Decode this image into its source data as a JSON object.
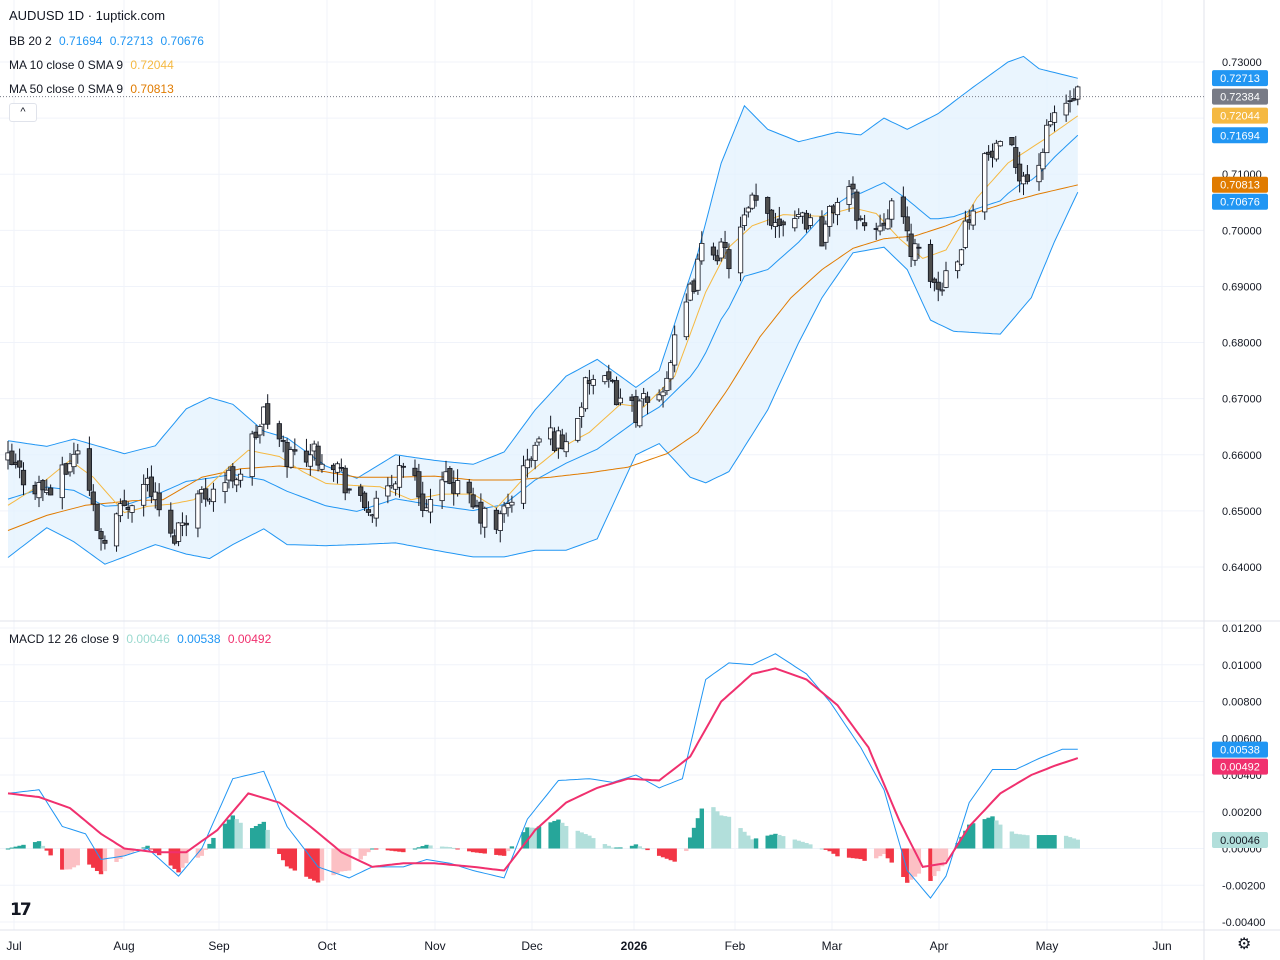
{
  "header": {
    "symbol": "AUDUSD 1D · 1uptick.com"
  },
  "legends": {
    "bb": {
      "label": "BB 20 2",
      "values": [
        "0.71694",
        "0.72713",
        "0.70676"
      ]
    },
    "ma10": {
      "label": "MA 10 close 0 SMA 9",
      "value": "0.72044"
    },
    "ma50": {
      "label": "MA 50 close 0 SMA 9",
      "value": "0.70813"
    },
    "macd": {
      "label": "MACD 12 26 close 9",
      "values": [
        "0.00046",
        "0.00538",
        "0.00492"
      ]
    }
  },
  "collapse_glyph": "^",
  "logo_text": "17",
  "colors": {
    "up": "#ffffff",
    "down": "#4d4d4d",
    "candle_outline": "#131722",
    "bb_line": "#2196f3",
    "bb_fill": "#e3f2fd",
    "ma10": "#f5b942",
    "ma50": "#e07b00",
    "macd": "#2196f3",
    "signal": "#f0306e",
    "hist_pos_strong": "#26a69a",
    "hist_pos_weak": "#b2dfdb",
    "hist_neg_strong": "#f23645",
    "hist_neg_weak": "#fcc0c4",
    "price_tag": "#787b86"
  },
  "chart_data": [
    {
      "type": "candlestick",
      "title": "AUDUSD 1D",
      "x_ticks": [
        "Jul",
        "Aug",
        "Sep",
        "Oct",
        "Nov",
        "Dec",
        "2026",
        "Feb",
        "Mar",
        "Apr",
        "May",
        "Jun"
      ],
      "y_ticks": [
        "0.73000",
        "0.72000",
        "0.71000",
        "0.70000",
        "0.69000",
        "0.68000",
        "0.67000",
        "0.66000",
        "0.65000",
        "0.64000"
      ],
      "ylim": [
        0.6354,
        0.7325
      ],
      "last_price": 0.72384,
      "price_tags": [
        {
          "text": "0.72713",
          "value": 0.72713,
          "color": "#2196f3"
        },
        {
          "text": "0.72384",
          "value": 0.72384,
          "color": "#787b86"
        },
        {
          "text": "0.72044",
          "value": 0.72044,
          "color": "#f5b942"
        },
        {
          "text": "0.71694",
          "value": 0.71694,
          "color": "#2196f3"
        },
        {
          "text": "0.70813",
          "value": 0.70813,
          "color": "#e07b00"
        },
        {
          "text": "0.70676",
          "value": 0.70676,
          "color": "#2196f3"
        }
      ],
      "close_anchors": [
        [
          0,
          0.6586
        ],
        [
          6,
          0.6548
        ],
        [
          12,
          0.6533
        ],
        [
          18,
          0.6615
        ],
        [
          24,
          0.6452
        ],
        [
          30,
          0.6511
        ],
        [
          36,
          0.6555
        ],
        [
          42,
          0.6448
        ],
        [
          48,
          0.6521
        ],
        [
          54,
          0.6545
        ],
        [
          60,
          0.6573
        ],
        [
          66,
          0.6672
        ],
        [
          72,
          0.6598
        ],
        [
          78,
          0.6608
        ],
        [
          84,
          0.6593
        ],
        [
          90,
          0.651
        ],
        [
          96,
          0.65
        ],
        [
          102,
          0.6593
        ],
        [
          108,
          0.6504
        ],
        [
          114,
          0.6557
        ],
        [
          120,
          0.6503
        ],
        [
          126,
          0.647
        ],
        [
          132,
          0.6555
        ],
        [
          138,
          0.664
        ],
        [
          144,
          0.662
        ],
        [
          150,
          0.6734
        ],
        [
          156,
          0.6715
        ],
        [
          162,
          0.6678
        ],
        [
          168,
          0.6705
        ],
        [
          174,
          0.6836
        ],
        [
          180,
          0.6984
        ],
        [
          186,
          0.6948
        ],
        [
          192,
          0.7045
        ],
        [
          198,
          0.702
        ],
        [
          204,
          0.7035
        ],
        [
          210,
          0.6992
        ],
        [
          216,
          0.709
        ],
        [
          222,
          0.6985
        ],
        [
          228,
          0.705
        ],
        [
          234,
          0.696
        ],
        [
          240,
          0.6895
        ],
        [
          246,
          0.698
        ],
        [
          252,
          0.713
        ],
        [
          258,
          0.714
        ],
        [
          264,
          0.708
        ],
        [
          270,
          0.721
        ],
        [
          276,
          0.7238
        ]
      ],
      "bollinger": {
        "upper_anchors": [
          [
            0,
            0.6625
          ],
          [
            10,
            0.6615
          ],
          [
            17,
            0.6628
          ],
          [
            25,
            0.6612
          ],
          [
            30,
            0.6602
          ],
          [
            38,
            0.6616
          ],
          [
            46,
            0.6682
          ],
          [
            52,
            0.6702
          ],
          [
            58,
            0.669
          ],
          [
            66,
            0.6642
          ],
          [
            72,
            0.663
          ],
          [
            82,
            0.658
          ],
          [
            90,
            0.6558
          ],
          [
            100,
            0.66
          ],
          [
            110,
            0.659
          ],
          [
            120,
            0.6583
          ],
          [
            128,
            0.6605
          ],
          [
            136,
            0.668
          ],
          [
            144,
            0.674
          ],
          [
            152,
            0.677
          ],
          [
            162,
            0.672
          ],
          [
            168,
            0.675
          ],
          [
            178,
            0.696
          ],
          [
            184,
            0.712
          ],
          [
            190,
            0.7222
          ],
          [
            196,
            0.718
          ],
          [
            204,
            0.7158
          ],
          [
            214,
            0.7175
          ],
          [
            220,
            0.717
          ],
          [
            226,
            0.72
          ],
          [
            232,
            0.718
          ],
          [
            240,
            0.7208
          ],
          [
            248,
            0.725
          ],
          [
            258,
            0.73
          ],
          [
            262,
            0.731
          ],
          [
            266,
            0.7288
          ],
          [
            276,
            0.7271
          ]
        ],
        "lower_anchors": [
          [
            0,
            0.6417
          ],
          [
            10,
            0.647
          ],
          [
            17,
            0.6445
          ],
          [
            25,
            0.6405
          ],
          [
            30,
            0.6418
          ],
          [
            38,
            0.644
          ],
          [
            46,
            0.6423
          ],
          [
            52,
            0.6415
          ],
          [
            58,
            0.644
          ],
          [
            66,
            0.6468
          ],
          [
            72,
            0.644
          ],
          [
            82,
            0.6438
          ],
          [
            90,
            0.644
          ],
          [
            100,
            0.6443
          ],
          [
            110,
            0.643
          ],
          [
            120,
            0.6418
          ],
          [
            128,
            0.6418
          ],
          [
            136,
            0.643
          ],
          [
            144,
            0.643
          ],
          [
            152,
            0.645
          ],
          [
            162,
            0.66
          ],
          [
            168,
            0.662
          ],
          [
            176,
            0.656
          ],
          [
            180,
            0.655
          ],
          [
            186,
            0.657
          ],
          [
            196,
            0.668
          ],
          [
            204,
            0.68
          ],
          [
            210,
            0.688
          ],
          [
            218,
            0.696
          ],
          [
            226,
            0.697
          ],
          [
            232,
            0.693
          ],
          [
            238,
            0.684
          ],
          [
            244,
            0.682
          ],
          [
            256,
            0.6815
          ],
          [
            264,
            0.688
          ],
          [
            270,
            0.698
          ],
          [
            276,
            0.7068
          ]
        ]
      },
      "ma10_anchors": [
        [
          0,
          0.651
        ],
        [
          8,
          0.6545
        ],
        [
          16,
          0.659
        ],
        [
          22,
          0.656
        ],
        [
          30,
          0.6497
        ],
        [
          36,
          0.6508
        ],
        [
          42,
          0.6512
        ],
        [
          48,
          0.652
        ],
        [
          56,
          0.6572
        ],
        [
          62,
          0.6608
        ],
        [
          70,
          0.6597
        ],
        [
          76,
          0.657
        ],
        [
          82,
          0.6549
        ],
        [
          90,
          0.6545
        ],
        [
          96,
          0.6543
        ],
        [
          104,
          0.652
        ],
        [
          112,
          0.653
        ],
        [
          120,
          0.653
        ],
        [
          126,
          0.6505
        ],
        [
          134,
          0.6565
        ],
        [
          142,
          0.661
        ],
        [
          150,
          0.664
        ],
        [
          158,
          0.669
        ],
        [
          164,
          0.6685
        ],
        [
          172,
          0.674
        ],
        [
          180,
          0.689
        ],
        [
          186,
          0.697
        ],
        [
          192,
          0.7008
        ],
        [
          200,
          0.7028
        ],
        [
          210,
          0.7025
        ],
        [
          218,
          0.704
        ],
        [
          224,
          0.703
        ],
        [
          230,
          0.6985
        ],
        [
          236,
          0.695
        ],
        [
          242,
          0.6965
        ],
        [
          250,
          0.7058
        ],
        [
          258,
          0.712
        ],
        [
          268,
          0.7165
        ],
        [
          276,
          0.7204
        ]
      ],
      "ma50_anchors": [
        [
          0,
          0.6465
        ],
        [
          10,
          0.6492
        ],
        [
          20,
          0.651
        ],
        [
          32,
          0.6518
        ],
        [
          40,
          0.652
        ],
        [
          50,
          0.656
        ],
        [
          60,
          0.6575
        ],
        [
          70,
          0.658
        ],
        [
          80,
          0.6572
        ],
        [
          90,
          0.656
        ],
        [
          100,
          0.656
        ],
        [
          110,
          0.6562
        ],
        [
          120,
          0.6555
        ],
        [
          130,
          0.6555
        ],
        [
          140,
          0.656
        ],
        [
          150,
          0.6568
        ],
        [
          160,
          0.6578
        ],
        [
          170,
          0.6602
        ],
        [
          178,
          0.664
        ],
        [
          186,
          0.672
        ],
        [
          194,
          0.681
        ],
        [
          202,
          0.688
        ],
        [
          210,
          0.693
        ],
        [
          218,
          0.6968
        ],
        [
          226,
          0.6985
        ],
        [
          234,
          0.699
        ],
        [
          242,
          0.7008
        ],
        [
          250,
          0.7032
        ],
        [
          258,
          0.705
        ],
        [
          266,
          0.7065
        ],
        [
          276,
          0.7081
        ]
      ]
    },
    {
      "type": "line",
      "title": "MACD 12 26 close 9",
      "y_ticks": [
        "0.01200",
        "0.01000",
        "0.00800",
        "0.00600",
        "0.00400",
        "0.00200",
        "0.00000",
        "-0.00200",
        "-0.00400"
      ],
      "ylim": [
        -0.0044,
        0.0122
      ],
      "series": [
        {
          "name": "MACD",
          "anchors": [
            [
              0,
              0.003
            ],
            [
              8,
              0.0032
            ],
            [
              14,
              0.0012
            ],
            [
              20,
              0.0008
            ],
            [
              24,
              -0.0006
            ],
            [
              30,
              -0.0004
            ],
            [
              36,
              0.0
            ],
            [
              44,
              -0.0015
            ],
            [
              50,
              0.0
            ],
            [
              58,
              0.0038
            ],
            [
              66,
              0.0042
            ],
            [
              72,
              0.0012
            ],
            [
              80,
              -0.001
            ],
            [
              88,
              -0.0016
            ],
            [
              94,
              -0.001
            ],
            [
              102,
              -0.001
            ],
            [
              108,
              -0.0006
            ],
            [
              114,
              -0.0008
            ],
            [
              120,
              -0.0012
            ],
            [
              128,
              -0.0016
            ],
            [
              134,
              0.0016
            ],
            [
              142,
              0.0037
            ],
            [
              150,
              0.0038
            ],
            [
              156,
              0.0036
            ],
            [
              162,
              0.004
            ],
            [
              168,
              0.0033
            ],
            [
              174,
              0.0038
            ],
            [
              180,
              0.0092
            ],
            [
              186,
              0.0101
            ],
            [
              192,
              0.01
            ],
            [
              198,
              0.0106
            ],
            [
              206,
              0.0095
            ],
            [
              212,
              0.008
            ],
            [
              220,
              0.0055
            ],
            [
              226,
              0.0032
            ],
            [
              232,
              -0.0012
            ],
            [
              238,
              -0.0027
            ],
            [
              242,
              -0.0015
            ],
            [
              248,
              0.0025
            ],
            [
              254,
              0.0043
            ],
            [
              260,
              0.0043
            ],
            [
              266,
              0.0049
            ],
            [
              272,
              0.0054
            ],
            [
              276,
              0.0054
            ]
          ]
        },
        {
          "name": "Signal",
          "anchors": [
            [
              0,
              0.003
            ],
            [
              8,
              0.0028
            ],
            [
              16,
              0.0022
            ],
            [
              24,
              0.0008
            ],
            [
              30,
              0.0
            ],
            [
              38,
              -0.0002
            ],
            [
              46,
              -0.0002
            ],
            [
              54,
              0.001
            ],
            [
              62,
              0.003
            ],
            [
              70,
              0.0025
            ],
            [
              78,
              0.0012
            ],
            [
              86,
              -0.0002
            ],
            [
              94,
              -0.001
            ],
            [
              102,
              -0.0008
            ],
            [
              110,
              -0.0008
            ],
            [
              120,
              -0.001
            ],
            [
              128,
              -0.0012
            ],
            [
              136,
              0.001
            ],
            [
              144,
              0.0025
            ],
            [
              152,
              0.0033
            ],
            [
              160,
              0.0038
            ],
            [
              168,
              0.0037
            ],
            [
              176,
              0.005
            ],
            [
              184,
              0.008
            ],
            [
              192,
              0.0095
            ],
            [
              198,
              0.0098
            ],
            [
              206,
              0.0092
            ],
            [
              214,
              0.0078
            ],
            [
              222,
              0.0055
            ],
            [
              230,
              0.0015
            ],
            [
              236,
              -0.001
            ],
            [
              242,
              -0.0008
            ],
            [
              248,
              0.0012
            ],
            [
              256,
              0.003
            ],
            [
              264,
              0.004
            ],
            [
              270,
              0.0045
            ],
            [
              276,
              0.00492
            ]
          ]
        }
      ],
      "histogram_last": 0.00046
    }
  ]
}
